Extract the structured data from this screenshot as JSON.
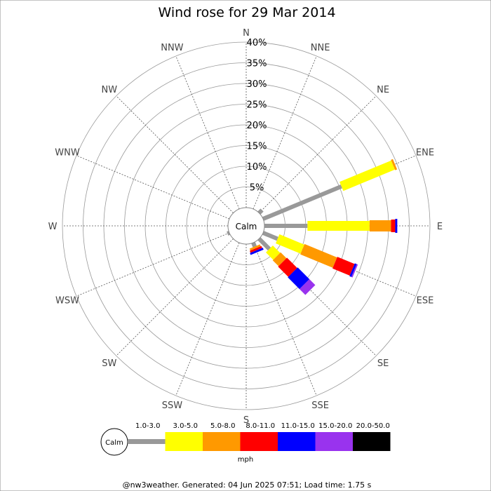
{
  "chart_data": {
    "type": "wind-rose",
    "title": "Wind rose for 29 Mar 2014",
    "directions": [
      "N",
      "NNE",
      "NE",
      "ENE",
      "E",
      "ESE",
      "SE",
      "SSE",
      "S",
      "SSW",
      "SW",
      "WSW",
      "W",
      "WNW",
      "NW",
      "NNW"
    ],
    "radial_ticks": [
      "5%",
      "10%",
      "15%",
      "20%",
      "25%",
      "30%",
      "35%",
      "40%"
    ],
    "radial_max": 40,
    "calm_label": "Calm",
    "unit": "mph",
    "speed_bins": [
      {
        "label": "1.0-3.0",
        "color": "#999999"
      },
      {
        "label": "3.0-5.0",
        "color": "#ffff00"
      },
      {
        "label": "5.0-8.0",
        "color": "#ff9900"
      },
      {
        "label": "8.0-11.0",
        "color": "#ff0000"
      },
      {
        "label": "11.0-15.0",
        "color": "#0000ff"
      },
      {
        "label": "15.0-20.0",
        "color": "#9933ee"
      },
      {
        "label": "20.0-50.0",
        "color": "#000000"
      }
    ],
    "series": [
      {
        "direction": "NE",
        "segments": [
          1.0,
          0,
          0,
          0,
          0,
          0,
          0
        ]
      },
      {
        "direction": "ENE",
        "segments": [
          20.5,
          13.5,
          0.5,
          0,
          0,
          0,
          0
        ]
      },
      {
        "direction": "E",
        "segments": [
          10.4,
          15.0,
          5.2,
          1.0,
          0.5,
          0,
          0
        ]
      },
      {
        "direction": "ESE",
        "segments": [
          3.8,
          6.5,
          8.5,
          4.5,
          0.5,
          0.3,
          0
        ]
      },
      {
        "direction": "SE",
        "segments": [
          3.5,
          2.5,
          2.0,
          3.5,
          4.0,
          2.0,
          0
        ]
      },
      {
        "direction": "SSE",
        "segments": [
          1.0,
          0,
          0.5,
          0.5,
          0.5,
          0,
          0
        ]
      },
      {
        "direction": "WSW",
        "segments": [
          0.5,
          0,
          0,
          0,
          0,
          0,
          0
        ]
      }
    ],
    "grid": true
  },
  "footer": "@nw3weather. Generated: 04 Jun 2025 07:51; Load time: 1.75 s"
}
